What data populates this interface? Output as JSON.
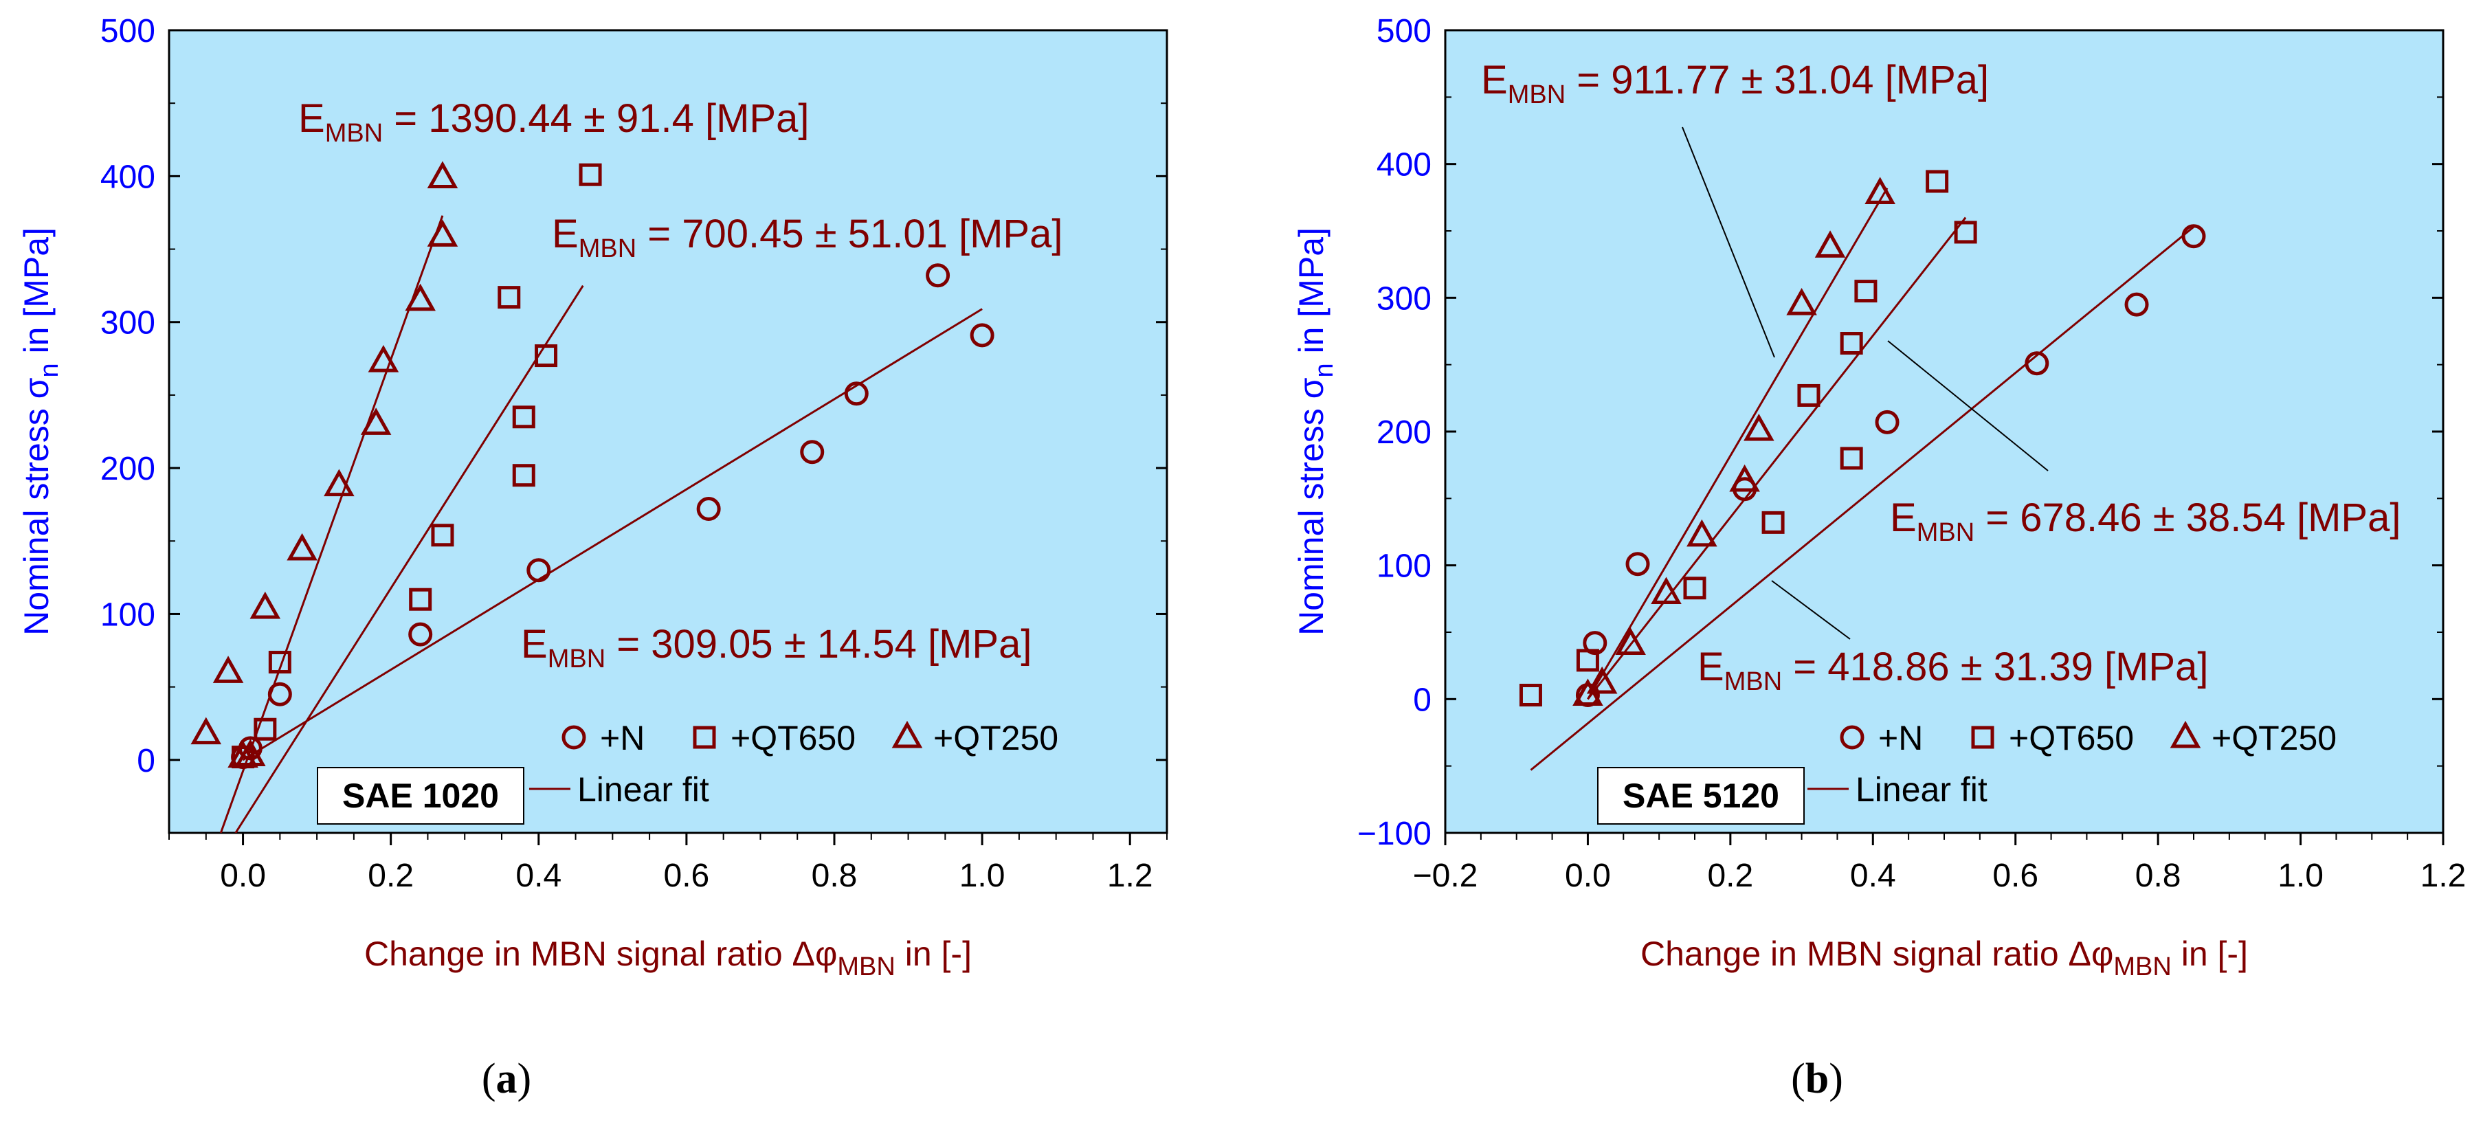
{
  "colors": {
    "plot_bg": "#b3e5fb",
    "marker": "#800000",
    "fit_line": "#800000",
    "y_axis": "#0000ff",
    "x_axis_label": "#800000"
  },
  "chart_data": [
    {
      "type": "scatter",
      "panel_caption": "a",
      "material_label": "SAE 1020",
      "xlabel": "Change in MBN signal ratio Δφ",
      "xlabel_sub": "MBN",
      "xlabel_suffix": " in [-]",
      "ylabel": "Nominal stress σ",
      "ylabel_sub": "n",
      "ylabel_suffix": " in [MPa]",
      "xlim": [
        -0.1,
        1.25
      ],
      "ylim": [
        -50,
        500
      ],
      "xticks": [
        0.0,
        0.2,
        0.4,
        0.6,
        0.8,
        1.0,
        1.2
      ],
      "xtick_labels": [
        "0.0",
        "0.2",
        "0.4",
        "0.6",
        "0.8",
        "1.0",
        "1.2"
      ],
      "yticks": [
        0,
        100,
        200,
        300,
        400,
        500
      ],
      "ytick_labels": [
        "0",
        "100",
        "200",
        "300",
        "400",
        "500"
      ],
      "legend": {
        "items": [
          "+N",
          "+QT650",
          "+QT250"
        ],
        "fit_label": "Linear fit",
        "position": "bottom-right"
      },
      "series": [
        {
          "name": "+N",
          "marker": "circle",
          "points": [
            [
              0.0,
              2
            ],
            [
              0.01,
              8
            ],
            [
              0.05,
              45
            ],
            [
              0.24,
              86
            ],
            [
              0.4,
              130
            ],
            [
              0.63,
              172
            ],
            [
              0.77,
              211
            ],
            [
              0.83,
              251
            ],
            [
              0.94,
              332
            ],
            [
              1.0,
              291
            ]
          ]
        },
        {
          "name": "+QT650",
          "marker": "square",
          "points": [
            [
              0.0,
              2
            ],
            [
              0.03,
              21
            ],
            [
              0.05,
              67
            ],
            [
              0.24,
              110
            ],
            [
              0.27,
              154
            ],
            [
              0.36,
              317
            ],
            [
              0.38,
              195
            ],
            [
              0.38,
              235
            ],
            [
              0.41,
              277
            ],
            [
              0.47,
              401
            ]
          ]
        },
        {
          "name": "+QT250",
          "marker": "triangle",
          "points": [
            [
              -0.05,
              18
            ],
            [
              -0.02,
              60
            ],
            [
              0.0,
              2
            ],
            [
              0.01,
              3
            ],
            [
              0.03,
              104
            ],
            [
              0.08,
              144
            ],
            [
              0.13,
              188
            ],
            [
              0.18,
              230
            ],
            [
              0.19,
              273
            ],
            [
              0.24,
              315
            ],
            [
              0.27,
              359
            ],
            [
              0.27,
              399
            ]
          ]
        }
      ],
      "fits": [
        {
          "series": "+N",
          "x": [
            0.0,
            1.0
          ],
          "y": [
            0,
            309
          ]
        },
        {
          "series": "+QT650",
          "x": [
            -0.01,
            0.46
          ],
          "y": [
            -50,
            325
          ]
        },
        {
          "series": "+QT250",
          "x": [
            -0.03,
            0.27
          ],
          "y": [
            -50,
            373
          ]
        }
      ],
      "annotations": [
        {
          "prefix": "E",
          "sub": "MBN",
          "value": " = 1390.44 ± 91.4 [MPa]"
        },
        {
          "prefix": "E",
          "sub": "MBN",
          "value": " = 700.45 ± 51.01 [MPa]"
        },
        {
          "prefix": "E",
          "sub": "MBN",
          "value": " = 309.05 ± 14.54 [MPa]"
        }
      ]
    },
    {
      "type": "scatter",
      "panel_caption": "b",
      "material_label": "SAE 5120",
      "xlabel": "Change in MBN signal ratio Δφ",
      "xlabel_sub": "MBN",
      "xlabel_suffix": " in [-]",
      "ylabel": "Nominal stress σ",
      "ylabel_sub": "n",
      "ylabel_suffix": " in [MPa]",
      "xlim": [
        -0.2,
        1.2
      ],
      "ylim": [
        -100,
        500
      ],
      "xticks": [
        -0.2,
        0.0,
        0.2,
        0.4,
        0.6,
        0.8,
        1.0,
        1.2
      ],
      "xtick_labels": [
        "−0.2",
        "0.0",
        "0.2",
        "0.4",
        "0.6",
        "0.8",
        "1.0",
        "1.2"
      ],
      "yticks": [
        -100,
        0,
        100,
        200,
        300,
        400,
        500
      ],
      "ytick_labels": [
        "−100",
        "0",
        "100",
        "200",
        "300",
        "400",
        "500"
      ],
      "legend": {
        "items": [
          "+N",
          "+QT650",
          "+QT250"
        ],
        "fit_label": "Linear fit",
        "position": "bottom-right"
      },
      "series": [
        {
          "name": "+N",
          "marker": "circle",
          "points": [
            [
              0.0,
              3
            ],
            [
              0.01,
              42
            ],
            [
              0.07,
              101
            ],
            [
              0.22,
              157
            ],
            [
              0.42,
              207
            ],
            [
              0.63,
              251
            ],
            [
              0.77,
              295
            ],
            [
              0.85,
              346
            ]
          ]
        },
        {
          "name": "+QT650",
          "marker": "square",
          "points": [
            [
              -0.08,
              3
            ],
            [
              0.0,
              29
            ],
            [
              0.15,
              83
            ],
            [
              0.26,
              132
            ],
            [
              0.31,
              227
            ],
            [
              0.37,
              180
            ],
            [
              0.37,
              266
            ],
            [
              0.39,
              305
            ],
            [
              0.49,
              387
            ],
            [
              0.53,
              349
            ]
          ]
        },
        {
          "name": "+QT250",
          "marker": "triangle",
          "points": [
            [
              0.0,
              3
            ],
            [
              0.02,
              12
            ],
            [
              0.06,
              41
            ],
            [
              0.11,
              79
            ],
            [
              0.16,
              122
            ],
            [
              0.22,
              163
            ],
            [
              0.24,
              201
            ],
            [
              0.3,
              295
            ],
            [
              0.34,
              338
            ],
            [
              0.41,
              378
            ]
          ]
        }
      ],
      "fits": [
        {
          "series": "+N",
          "x": [
            -0.08,
            0.85
          ],
          "y": [
            -53,
            353
          ]
        },
        {
          "series": "+QT650",
          "x": [
            0.0,
            0.53
          ],
          "y": [
            0,
            360
          ]
        },
        {
          "series": "+QT250",
          "x": [
            0.0,
            0.42
          ],
          "y": [
            0,
            382
          ]
        }
      ],
      "annotations": [
        {
          "prefix": "E",
          "sub": "MBN",
          "value": " = 911.77 ± 31.04 [MPa]"
        },
        {
          "prefix": "E",
          "sub": "MBN",
          "value": " = 678.46 ± 38.54 [MPa]"
        },
        {
          "prefix": "E",
          "sub": "MBN",
          "value": " = 418.86 ± 31.39 [MPa]"
        }
      ]
    }
  ]
}
